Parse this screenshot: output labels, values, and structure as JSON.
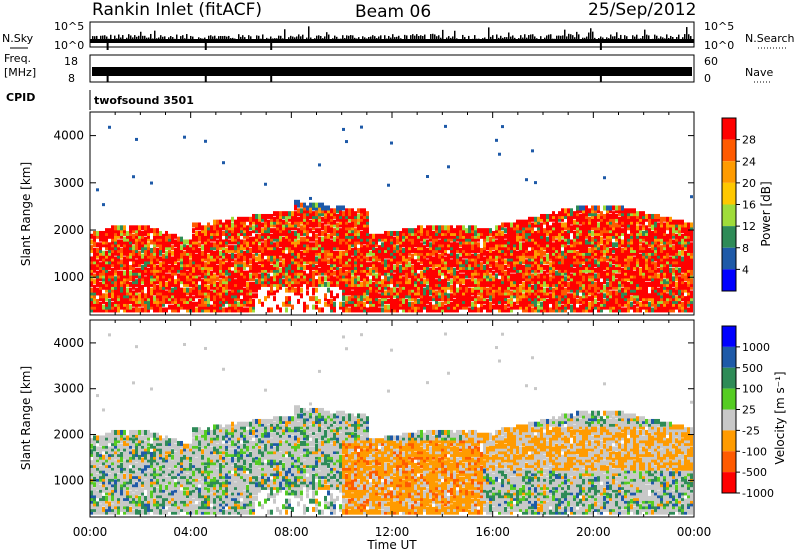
{
  "header": {
    "title": "Rankin Inlet (fitACF)",
    "beam": "Beam 06",
    "date": "25/Sep/2012"
  },
  "strip_nsky": {
    "left_label": "N.Sky",
    "right_label": "N.Search",
    "left_ticks": [
      "10^5",
      "10^0"
    ],
    "right_ticks": [
      "10^5",
      "10^0"
    ]
  },
  "strip_freq": {
    "left_label_1": "Freq.",
    "left_label_2": "[MHz]",
    "right_label": "Nave",
    "left_ticks": [
      "18",
      "8"
    ],
    "right_ticks": [
      "60",
      "0"
    ]
  },
  "cpid": {
    "label": "CPID",
    "value": "twofsound 3501"
  },
  "chart_data": [
    {
      "type": "heatmap",
      "title": "",
      "quantity": "Power",
      "colorbar_label": "Power [dB]",
      "colorbar_ticks": [
        "28",
        "24",
        "20",
        "16",
        "12",
        "8",
        "4"
      ],
      "colors": [
        "#ff0000",
        "#ff5a00",
        "#ff9b00",
        "#ffc800",
        "#9fdc3a",
        "#2e8b57",
        "#1e5aa8",
        "#0000ff"
      ],
      "ylabel": "Slant Range [km]",
      "yticks": [
        "4000",
        "3000",
        "2000",
        "1000"
      ],
      "ylim_km": [
        200,
        4500
      ],
      "xlim_hours": [
        0,
        24
      ]
    },
    {
      "type": "heatmap",
      "title": "",
      "quantity": "Velocity",
      "colorbar_label": "Velocity [m s⁻¹]",
      "colorbar_ticks": [
        "1000",
        "500",
        "100",
        "25",
        "-25",
        "-100",
        "-500",
        "-1000"
      ],
      "colors": [
        "#0000ff",
        "#1e5aa8",
        "#2e8b57",
        "#55cc22",
        "#c8c8c8",
        "#ff9b00",
        "#ff5a00",
        "#ff0000"
      ],
      "ylabel": "Slant Range [km]",
      "yticks": [
        "4000",
        "3000",
        "2000",
        "1000"
      ],
      "ylim_km": [
        200,
        4500
      ],
      "xlim_hours": [
        0,
        24
      ]
    }
  ],
  "x_axis": {
    "label": "Time UT",
    "ticks": [
      "00:00",
      "04:00",
      "08:00",
      "12:00",
      "16:00",
      "20:00",
      "00:00"
    ]
  }
}
